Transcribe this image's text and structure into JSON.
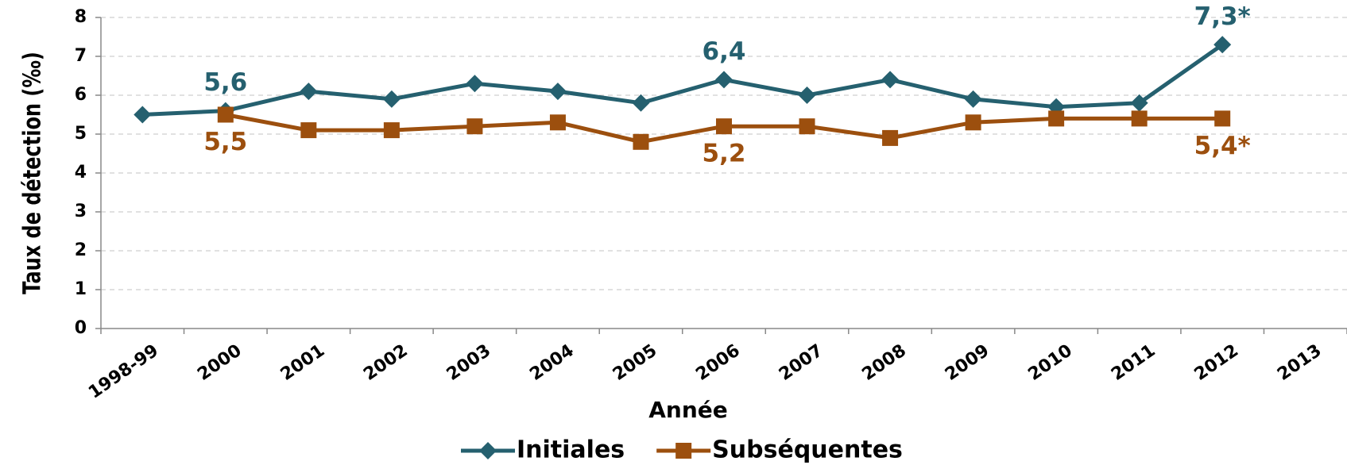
{
  "chart_data": {
    "type": "line",
    "y_label": "Taux de détection (‰)",
    "x_label": "Année",
    "categories": [
      "1998-99",
      "2000",
      "2001",
      "2002",
      "2003",
      "2004",
      "2005",
      "2006",
      "2007",
      "2008",
      "2009",
      "2010",
      "2011",
      "2012",
      "2013"
    ],
    "series": [
      {
        "name": "Initiales",
        "color": "#25606f",
        "marker": "diamond",
        "values": [
          5.5,
          5.6,
          6.1,
          5.9,
          6.3,
          6.1,
          5.8,
          6.4,
          6.0,
          6.4,
          5.9,
          5.7,
          5.8,
          7.3,
          null
        ],
        "value_labels": [
          null,
          "5,6",
          null,
          null,
          null,
          null,
          null,
          "6,4",
          null,
          null,
          null,
          null,
          null,
          "7,3*",
          null
        ]
      },
      {
        "name": "Subséquentes",
        "color": "#9c4f0e",
        "marker": "square",
        "values": [
          null,
          5.5,
          5.1,
          5.1,
          5.2,
          5.3,
          4.8,
          5.2,
          5.2,
          4.9,
          5.3,
          5.4,
          5.4,
          5.4,
          null
        ],
        "value_labels": [
          null,
          "5,5",
          null,
          null,
          null,
          null,
          null,
          "5,2",
          null,
          null,
          null,
          null,
          null,
          "5,4*",
          null
        ]
      }
    ],
    "ylim": [
      0,
      8
    ],
    "yticks": [
      0,
      1,
      2,
      3,
      4,
      5,
      6,
      7,
      8
    ],
    "grid": true,
    "legend": "bottom"
  }
}
